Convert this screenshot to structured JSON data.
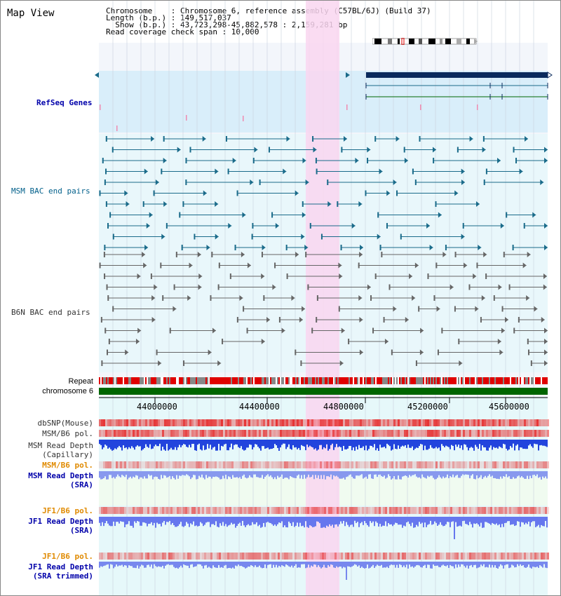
{
  "app": {
    "title": "Map View"
  },
  "info": {
    "lines": [
      "Chromosome    : Chromosome 6, reference assembly (C57BL/6J) (Build 37)",
      "Length (b.p.) : 149,517,037",
      "  Show (b.p.) : 43,723,298-45,882,578 : 2,159,281 bp",
      "Read coverage check span : 10,000"
    ]
  },
  "tracks": {
    "refseq": "RefSeq Genes",
    "msm_bac": "MSM BAC end pairs",
    "b6n_bac": "B6N BAC end pairs",
    "repeat": "Repeat",
    "chromosome": "chromosome 6",
    "dbsnp": "dbSNP(Mouse)",
    "msm_b6_pol_1": "MSM/B6 pol.",
    "msm_read_depth_cap": "MSM Read Depth",
    "msm_read_depth_cap_sub": "(Capillary)",
    "msm_b6_pol_2": "MSM/B6 pol.",
    "msm_read_depth_sra": "MSM Read Depth",
    "msm_read_depth_sra_sub": "(SRA)",
    "jf1_b6_pol_1": "JF1/B6 pol.",
    "jf1_read_depth": "JF1 Read Depth",
    "jf1_read_depth_sub": "(SRA)",
    "jf1_b6_pol_2": "JF1/B6 pol.",
    "jf1_read_depth_trim": "JF1 Read Depth",
    "jf1_read_depth_trim_sub": "(SRA trimmed)"
  },
  "axis": {
    "ticks": [
      "44000000",
      "44400000",
      "44800000",
      "45200000",
      "45600000"
    ]
  },
  "colors": {
    "highlight": "#f9d6f0",
    "refseq_bg": "#d9eefa",
    "bac_bg": "#e9f7fb",
    "lower_bg": "#e6f8fa",
    "msm_sra_bg": "#f0fbf0",
    "navy": "#0a2a5c",
    "teal": "#1a6b8a",
    "green": "#006600"
  }
}
